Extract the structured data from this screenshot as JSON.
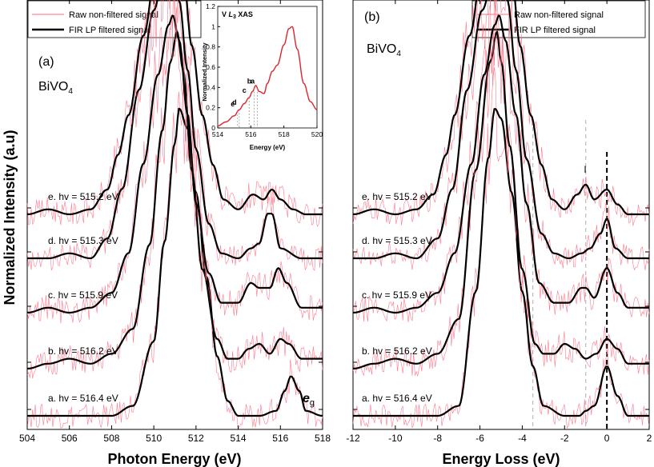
{
  "figure": {
    "ylabel": "Normalized Intensity (a.u)",
    "material": "BiVO",
    "material_sub": "4",
    "legend": [
      "Raw  non-filtered signal",
      "FIR LP filtered signal"
    ],
    "raw_color": "#ff6b80",
    "filtered_color": "#000000"
  },
  "chart_data": [
    {
      "type": "line",
      "panel_label": "(a)",
      "xlabel": "Photon Energy (eV)",
      "xlim": [
        504,
        518
      ],
      "xticks": [
        "504",
        "506",
        "508",
        "510",
        "512",
        "514",
        "516",
        "518"
      ],
      "ylim": [
        0,
        1
      ],
      "peak_label": "e",
      "peak_label_sub": "g",
      "series": [
        {
          "name": "a. hv = 516.4 eV",
          "offset": 0.0,
          "x": [
            504,
            508,
            509,
            510,
            510.5,
            511,
            511.2,
            511.6,
            512,
            512.5,
            513,
            513.5,
            514,
            515,
            515.8,
            516.2,
            516.5,
            516.9,
            517.2,
            518
          ],
          "y": [
            0,
            0,
            0.02,
            0.15,
            0.35,
            0.55,
            0.62,
            0.58,
            0.45,
            0.28,
            0.12,
            0.03,
            0,
            0,
            0.01,
            0.05,
            0.08,
            0.05,
            0.01,
            0
          ]
        },
        {
          "name": "b. hv = 516.2 eV",
          "offset": 0.17,
          "x": [
            504,
            505,
            506,
            507,
            508,
            509,
            509.8,
            510.4,
            510.8,
            511.1,
            511.4,
            511.8,
            512.3,
            513,
            513.5,
            514,
            514.5,
            515,
            515.5,
            516,
            516.4,
            517,
            518
          ],
          "y": [
            0,
            0.01,
            0.02,
            0.01,
            0.03,
            0.08,
            0.25,
            0.48,
            0.62,
            0.68,
            0.6,
            0.4,
            0.2,
            0.06,
            0.02,
            0.02,
            0.04,
            0.05,
            0.03,
            0.06,
            0.05,
            0.02,
            0.02
          ]
        },
        {
          "name": "c. hv = 515.9 eV",
          "offset": 0.34,
          "x": [
            504,
            505,
            506,
            507,
            508,
            508.8,
            509.5,
            510.2,
            510.7,
            510.9,
            511.2,
            511.6,
            512,
            512.6,
            513.2,
            514,
            514.6,
            515,
            515.5,
            515.9,
            516.3,
            517,
            518
          ],
          "y": [
            0,
            0.01,
            0.0,
            0.01,
            0.04,
            0.12,
            0.3,
            0.48,
            0.58,
            0.6,
            0.55,
            0.4,
            0.22,
            0.08,
            0.02,
            0.02,
            0.06,
            0.05,
            0.05,
            0.09,
            0.06,
            0.01,
            0.01
          ]
        },
        {
          "name": "d. hv = 515.3 eV",
          "offset": 0.51,
          "x": [
            504,
            505,
            506,
            507,
            507.8,
            508.5,
            509.3,
            510,
            510.5,
            510.8,
            511.2,
            511.6,
            512,
            512.6,
            513.2,
            514,
            514.6,
            515,
            515.4,
            515.6,
            516,
            517,
            518
          ],
          "y": [
            0,
            0,
            0.01,
            0.0,
            0.04,
            0.14,
            0.34,
            0.5,
            0.58,
            0.59,
            0.52,
            0.38,
            0.22,
            0.07,
            0.01,
            0.0,
            0.02,
            0.03,
            0.09,
            0.09,
            0.02,
            0.0,
            0.0
          ]
        },
        {
          "name": "e. hv = 515.2 eV",
          "offset": 0.68,
          "x": [
            504,
            505,
            506,
            507,
            507.8,
            508.3,
            508.8,
            509.5,
            510.2,
            510.7,
            511,
            511.4,
            511.8,
            512.3,
            512.8,
            513.3,
            514,
            514.7,
            515.2,
            515.6,
            516,
            516.6,
            517.2,
            518
          ],
          "y": [
            0,
            0.01,
            0.0,
            0.01,
            0.05,
            0.12,
            0.2,
            0.36,
            0.52,
            0.6,
            0.58,
            0.48,
            0.34,
            0.2,
            0.1,
            0.03,
            0.01,
            0.04,
            0.03,
            0.05,
            0.03,
            0.01,
            0.0,
            0.0
          ]
        }
      ]
    },
    {
      "type": "line",
      "panel_label": "(b)",
      "xlabel": "Energy Loss (eV)",
      "xlim": [
        -12,
        2
      ],
      "xticks": [
        "-12",
        "-10",
        "-8",
        "-6",
        "-4",
        "-2",
        "0",
        "2"
      ],
      "ylim": [
        0,
        1
      ],
      "marker_label": "I",
      "vlines": [
        -3.5,
        -1.0,
        0
      ],
      "series": [
        {
          "name": "a. hv = 516.4 eV",
          "offset": 0.0,
          "x": [
            -12,
            -8,
            -7,
            -6.2,
            -5.6,
            -5.3,
            -5.0,
            -4.5,
            -4,
            -3.5,
            -3,
            -2,
            -1.3,
            -1,
            -0.6,
            0,
            0.5,
            1,
            2
          ],
          "y": [
            0,
            0,
            0.02,
            0.25,
            0.52,
            0.62,
            0.6,
            0.45,
            0.25,
            0.1,
            0.02,
            0,
            0,
            0.01,
            0.02,
            0.1,
            0.04,
            0,
            0
          ]
        },
        {
          "name": "b. hv = 516.2 eV",
          "offset": 0.17,
          "x": [
            -12,
            -11,
            -10,
            -9,
            -8,
            -7,
            -6.2,
            -5.5,
            -5.2,
            -5,
            -4.6,
            -4,
            -3.4,
            -3,
            -2.5,
            -2,
            -1.5,
            -1,
            -0.5,
            0,
            0.5,
            1,
            2
          ],
          "y": [
            0,
            0.01,
            0.02,
            0.01,
            0.03,
            0.1,
            0.4,
            0.62,
            0.68,
            0.62,
            0.45,
            0.2,
            0.05,
            0.03,
            0.03,
            0.05,
            0.04,
            0.02,
            0.03,
            0.06,
            0.04,
            0.01,
            0.01
          ]
        },
        {
          "name": "c. hv = 515.9 eV",
          "offset": 0.34,
          "x": [
            -12,
            -11,
            -10,
            -9,
            -8,
            -7.2,
            -6.4,
            -5.8,
            -5.3,
            -5.1,
            -4.8,
            -4.3,
            -3.8,
            -3.2,
            -2.5,
            -1.8,
            -1.2,
            -1,
            -0.6,
            0,
            0.5,
            1,
            2
          ],
          "y": [
            0,
            0.01,
            0.0,
            0.01,
            0.04,
            0.12,
            0.3,
            0.48,
            0.58,
            0.6,
            0.55,
            0.4,
            0.22,
            0.06,
            0.02,
            0.02,
            0.05,
            0.05,
            0.03,
            0.09,
            0.04,
            0.01,
            0.01
          ]
        },
        {
          "name": "d. hv = 515.3 eV",
          "offset": 0.51,
          "x": [
            -12,
            -11,
            -10,
            -9,
            -8,
            -7.3,
            -6.6,
            -5.9,
            -5.3,
            -5.0,
            -4.7,
            -4.3,
            -3.8,
            -3.1,
            -2.5,
            -1.8,
            -1.2,
            -0.8,
            -0.3,
            0,
            0.4,
            1,
            2
          ],
          "y": [
            0,
            0,
            0.01,
            0.0,
            0.04,
            0.14,
            0.34,
            0.5,
            0.58,
            0.59,
            0.52,
            0.38,
            0.2,
            0.05,
            0.01,
            0.0,
            0.01,
            0.02,
            0.05,
            0.08,
            0.02,
            0.0,
            0.0
          ]
        },
        {
          "name": "e. hv = 515.2 eV",
          "offset": 0.68,
          "x": [
            -12,
            -11,
            -10,
            -9,
            -8.2,
            -7.6,
            -7.2,
            -6.5,
            -5.8,
            -5.2,
            -4.9,
            -4.5,
            -4.1,
            -3.6,
            -3.1,
            -2.6,
            -2,
            -1.4,
            -1,
            -0.6,
            0,
            0.5,
            1,
            2
          ],
          "y": [
            0,
            0.01,
            0.0,
            0.01,
            0.04,
            0.12,
            0.2,
            0.36,
            0.52,
            0.6,
            0.58,
            0.48,
            0.34,
            0.2,
            0.1,
            0.03,
            0.01,
            0.04,
            0.06,
            0.03,
            0.05,
            0.02,
            0.0,
            0.0
          ]
        }
      ]
    },
    {
      "type": "line",
      "title": "V L3 XAS",
      "title_prefix": "V ",
      "title_italic": "L",
      "title_sub": "3",
      "title_suffix": " XAS",
      "xlabel": "Energy (eV)",
      "ylabel": "Normalized Intensity",
      "xlim": [
        514,
        520
      ],
      "ylim": [
        0,
        1.2
      ],
      "xticks": [
        "514",
        "516",
        "518",
        "520"
      ],
      "yticks": [
        "0",
        "0.2",
        "0.4",
        "0.6",
        "0.8",
        "1",
        "1.2"
      ],
      "annotations": [
        {
          "label": "a",
          "x": 516.4
        },
        {
          "label": "b",
          "x": 516.2
        },
        {
          "label": "c",
          "x": 515.9
        },
        {
          "label": "d",
          "x": 515.3
        },
        {
          "label": "e",
          "x": 515.2
        }
      ],
      "series": [
        {
          "name": "XAS",
          "x": [
            514,
            514.5,
            515,
            515.3,
            515.6,
            515.9,
            516.1,
            516.3,
            516.5,
            516.8,
            517,
            517.3,
            517.6,
            518,
            518.3,
            518.5,
            518.8,
            519.2,
            519.6,
            520
          ],
          "y": [
            0.02,
            0.06,
            0.12,
            0.18,
            0.24,
            0.3,
            0.36,
            0.42,
            0.36,
            0.34,
            0.44,
            0.56,
            0.62,
            0.82,
            0.98,
            1.0,
            0.78,
            0.44,
            0.26,
            0.18
          ]
        }
      ]
    }
  ]
}
